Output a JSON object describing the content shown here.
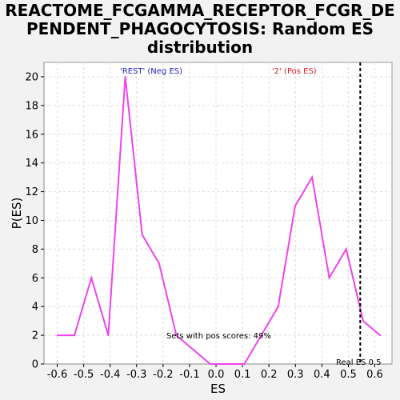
{
  "title_lines": [
    "REACTOME_FCGAMMA_RECEPTOR_FCGR_DE",
    "PENDENT_PHAGOCYTOSIS: Random ES",
    "distribution"
  ],
  "colors": {
    "line": "#ee44ee",
    "neg_label": "#2222bb",
    "pos_label": "#dd2222",
    "grid": "#dddddd",
    "plot_bg": "#ffffff"
  },
  "chart_data": {
    "type": "line",
    "title": "REACTOME_FCGAMMA_RECEPTOR_FCGR_DEPENDENT_PHAGOCYTOSIS: Random ES distribution",
    "xlabel": "ES",
    "ylabel": "P(ES)",
    "xlim": [
      -0.65,
      0.665
    ],
    "ylim": [
      0,
      21
    ],
    "xticks": [
      "-0.6",
      "-0.5",
      "-0.4",
      "-0.3",
      "-0.2",
      "-0.1",
      "0.0",
      "0.1",
      "0.2",
      "0.3",
      "0.4",
      "0.5",
      "0.6"
    ],
    "yticks": [
      "0",
      "2",
      "4",
      "6",
      "8",
      "10",
      "12",
      "14",
      "16",
      "18",
      "20"
    ],
    "grid": true,
    "series": [
      {
        "x": [
          -0.6,
          -0.535,
          -0.471,
          -0.407,
          -0.343,
          -0.279,
          -0.215,
          -0.15,
          -0.086,
          -0.022,
          0.043,
          0.107,
          0.171,
          0.235,
          0.299,
          0.363,
          0.428,
          0.492,
          0.556,
          0.62
        ],
        "values": [
          2,
          2,
          6,
          2,
          20,
          9,
          7,
          2,
          1,
          0,
          0,
          0,
          2,
          4,
          11,
          13,
          6,
          8,
          3,
          2
        ]
      }
    ],
    "real_es": 0.545,
    "annotations": {
      "neg": "'REST' (Neg ES)",
      "pos": "'2' (Pos ES)",
      "pos_scores": "Sets with pos scores: 49%",
      "real_es": "Real ES 0.5"
    }
  }
}
